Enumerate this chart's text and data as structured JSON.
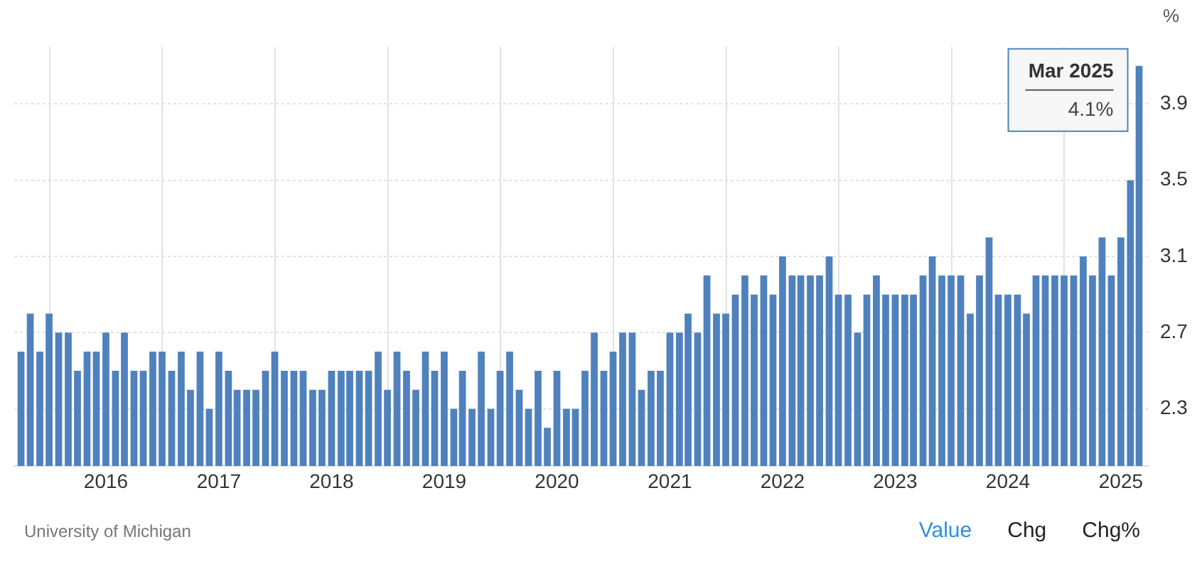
{
  "chart_data": {
    "type": "bar",
    "ylabel": "%",
    "x": [
      "2015-04",
      "2015-05",
      "2015-06",
      "2015-07",
      "2015-08",
      "2015-09",
      "2015-10",
      "2015-11",
      "2015-12",
      "2016-01",
      "2016-02",
      "2016-03",
      "2016-04",
      "2016-05",
      "2016-06",
      "2016-07",
      "2016-08",
      "2016-09",
      "2016-10",
      "2016-11",
      "2016-12",
      "2017-01",
      "2017-02",
      "2017-03",
      "2017-04",
      "2017-05",
      "2017-06",
      "2017-07",
      "2017-08",
      "2017-09",
      "2017-10",
      "2017-11",
      "2017-12",
      "2018-01",
      "2018-02",
      "2018-03",
      "2018-04",
      "2018-05",
      "2018-06",
      "2018-07",
      "2018-08",
      "2018-09",
      "2018-10",
      "2018-11",
      "2018-12",
      "2019-01",
      "2019-02",
      "2019-03",
      "2019-04",
      "2019-05",
      "2019-06",
      "2019-07",
      "2019-08",
      "2019-09",
      "2019-10",
      "2019-11",
      "2019-12",
      "2020-01",
      "2020-02",
      "2020-03",
      "2020-04",
      "2020-05",
      "2020-06",
      "2020-07",
      "2020-08",
      "2020-09",
      "2020-10",
      "2020-11",
      "2020-12",
      "2021-01",
      "2021-02",
      "2021-03",
      "2021-04",
      "2021-05",
      "2021-06",
      "2021-07",
      "2021-08",
      "2021-09",
      "2021-10",
      "2021-11",
      "2021-12",
      "2022-01",
      "2022-02",
      "2022-03",
      "2022-04",
      "2022-05",
      "2022-06",
      "2022-07",
      "2022-08",
      "2022-09",
      "2022-10",
      "2022-11",
      "2022-12",
      "2023-01",
      "2023-02",
      "2023-03",
      "2023-04",
      "2023-05",
      "2023-06",
      "2023-07",
      "2023-08",
      "2023-09",
      "2023-10",
      "2023-11",
      "2023-12",
      "2024-01",
      "2024-02",
      "2024-03",
      "2024-04",
      "2024-05",
      "2024-06",
      "2024-07",
      "2024-08",
      "2024-09",
      "2024-10",
      "2024-11",
      "2024-12",
      "2025-01",
      "2025-02",
      "2025-03"
    ],
    "values": [
      2.6,
      2.8,
      2.6,
      2.8,
      2.7,
      2.7,
      2.5,
      2.6,
      2.6,
      2.7,
      2.5,
      2.7,
      2.5,
      2.5,
      2.6,
      2.6,
      2.5,
      2.6,
      2.4,
      2.6,
      2.3,
      2.6,
      2.5,
      2.4,
      2.4,
      2.4,
      2.5,
      2.6,
      2.5,
      2.5,
      2.5,
      2.4,
      2.4,
      2.5,
      2.5,
      2.5,
      2.5,
      2.5,
      2.6,
      2.4,
      2.6,
      2.5,
      2.4,
      2.6,
      2.5,
      2.6,
      2.3,
      2.5,
      2.3,
      2.6,
      2.3,
      2.5,
      2.6,
      2.4,
      2.3,
      2.5,
      2.2,
      2.5,
      2.3,
      2.3,
      2.5,
      2.7,
      2.5,
      2.6,
      2.7,
      2.7,
      2.4,
      2.5,
      2.5,
      2.7,
      2.7,
      2.8,
      2.7,
      3.0,
      2.8,
      2.8,
      2.9,
      3.0,
      2.9,
      3.0,
      2.9,
      3.1,
      3.0,
      3.0,
      3.0,
      3.0,
      3.1,
      2.9,
      2.9,
      2.7,
      2.9,
      3.0,
      2.9,
      2.9,
      2.9,
      2.9,
      3.0,
      3.1,
      3.0,
      3.0,
      3.0,
      2.8,
      3.0,
      3.2,
      2.9,
      2.9,
      2.9,
      2.8,
      3.0,
      3.0,
      3.0,
      3.0,
      3.0,
      3.1,
      3.0,
      3.2,
      3.0,
      3.2,
      3.5,
      4.1
    ],
    "color": "#4f81bd",
    "xlim": [
      "2015-03-10",
      "2025-04"
    ],
    "xticks": [
      "2016",
      "2017",
      "2018",
      "2019",
      "2020",
      "2021",
      "2022",
      "2023",
      "2024",
      "2025"
    ],
    "ylim": [
      2.0,
      4.2
    ],
    "yticks": [
      2.3,
      2.7,
      3.1,
      3.5,
      3.9
    ],
    "grid": true,
    "annotations": [
      {
        "text": "Mar 2025\n4.1%",
        "x": "2025-03",
        "y": 4.1
      },
      "University of Michigan",
      "Value",
      "Chg",
      "Chg%"
    ]
  }
}
